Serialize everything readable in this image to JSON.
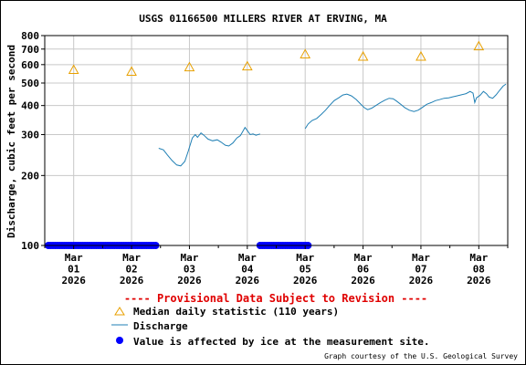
{
  "chart_data": {
    "type": "line",
    "title": "USGS 01166500 MILLERS RIVER AT ERVING, MA",
    "ylabel": "Discharge, cubic feet per second",
    "xlabel": "",
    "y_scale": "log",
    "ylim": [
      100,
      800
    ],
    "y_ticks": [
      {
        "value": 100,
        "label": "100"
      },
      {
        "value": 200,
        "label": "200"
      },
      {
        "value": 300,
        "label": "300"
      },
      {
        "value": 400,
        "label": "400"
      },
      {
        "value": 500,
        "label": "500"
      },
      {
        "value": 600,
        "label": "600"
      },
      {
        "value": 700,
        "label": "700"
      },
      {
        "value": 800,
        "label": "800"
      }
    ],
    "xlim": [
      0.5,
      8.5
    ],
    "x_ticks": [
      {
        "day": 1,
        "line1": "Mar",
        "line2": "01",
        "line3": "2026"
      },
      {
        "day": 2,
        "line1": "Mar",
        "line2": "02",
        "line3": "2026"
      },
      {
        "day": 3,
        "line1": "Mar",
        "line2": "03",
        "line3": "2026"
      },
      {
        "day": 4,
        "line1": "Mar",
        "line2": "04",
        "line3": "2026"
      },
      {
        "day": 5,
        "line1": "Mar",
        "line2": "05",
        "line3": "2026"
      },
      {
        "day": 6,
        "line1": "Mar",
        "line2": "06",
        "line3": "2026"
      },
      {
        "day": 7,
        "line1": "Mar",
        "line2": "07",
        "line3": "2026"
      },
      {
        "day": 8,
        "line1": "Mar",
        "line2": "08",
        "line3": "2026"
      }
    ],
    "grid": true,
    "colors": {
      "discharge": "#1f7fb4",
      "median": "#e8a000",
      "ice": "#0000ff",
      "provisional": "#e00000",
      "grid": "#c8c8c8"
    },
    "median_daily": [
      {
        "day": 1,
        "value": 570
      },
      {
        "day": 2,
        "value": 560
      },
      {
        "day": 3,
        "value": 585
      },
      {
        "day": 4,
        "value": 590
      },
      {
        "day": 5,
        "value": 665
      },
      {
        "day": 6,
        "value": 650
      },
      {
        "day": 7,
        "value": 650
      },
      {
        "day": 8,
        "value": 720
      }
    ],
    "discharge_segments": [
      [
        [
          2.47,
          262
        ],
        [
          2.55,
          258
        ],
        [
          2.62,
          245
        ],
        [
          2.7,
          232
        ],
        [
          2.78,
          222
        ],
        [
          2.85,
          220
        ],
        [
          2.92,
          230
        ],
        [
          2.98,
          255
        ],
        [
          3.05,
          290
        ],
        [
          3.1,
          300
        ],
        [
          3.14,
          292
        ],
        [
          3.2,
          305
        ],
        [
          3.25,
          298
        ],
        [
          3.32,
          287
        ],
        [
          3.4,
          282
        ],
        [
          3.48,
          285
        ],
        [
          3.55,
          278
        ],
        [
          3.62,
          270
        ],
        [
          3.68,
          268
        ],
        [
          3.75,
          276
        ],
        [
          3.82,
          290
        ],
        [
          3.88,
          297
        ],
        [
          3.93,
          312
        ],
        [
          3.96,
          322
        ],
        [
          4.0,
          312
        ],
        [
          4.05,
          300
        ],
        [
          4.1,
          302
        ],
        [
          4.15,
          298
        ],
        [
          4.22,
          302
        ]
      ],
      [
        [
          5.0,
          318
        ],
        [
          5.05,
          333
        ],
        [
          5.12,
          345
        ],
        [
          5.2,
          352
        ],
        [
          5.28,
          367
        ],
        [
          5.35,
          382
        ],
        [
          5.42,
          400
        ],
        [
          5.5,
          420
        ],
        [
          5.58,
          432
        ],
        [
          5.65,
          444
        ],
        [
          5.72,
          448
        ],
        [
          5.8,
          440
        ],
        [
          5.88,
          425
        ],
        [
          5.95,
          408
        ],
        [
          6.02,
          392
        ],
        [
          6.08,
          384
        ],
        [
          6.15,
          390
        ],
        [
          6.22,
          400
        ],
        [
          6.3,
          412
        ],
        [
          6.38,
          422
        ],
        [
          6.45,
          430
        ],
        [
          6.52,
          428
        ],
        [
          6.58,
          418
        ],
        [
          6.65,
          405
        ],
        [
          6.72,
          392
        ],
        [
          6.8,
          382
        ],
        [
          6.88,
          377
        ],
        [
          6.95,
          382
        ],
        [
          7.02,
          392
        ],
        [
          7.1,
          405
        ],
        [
          7.18,
          412
        ],
        [
          7.25,
          420
        ],
        [
          7.32,
          424
        ],
        [
          7.4,
          430
        ],
        [
          7.48,
          432
        ],
        [
          7.55,
          436
        ],
        [
          7.62,
          440
        ],
        [
          7.7,
          445
        ],
        [
          7.78,
          450
        ],
        [
          7.85,
          460
        ],
        [
          7.9,
          452
        ],
        [
          7.93,
          412
        ],
        [
          7.96,
          432
        ],
        [
          8.02,
          442
        ],
        [
          8.08,
          460
        ],
        [
          8.13,
          450
        ],
        [
          8.18,
          435
        ],
        [
          8.24,
          430
        ],
        [
          8.3,
          445
        ],
        [
          8.36,
          465
        ],
        [
          8.42,
          485
        ],
        [
          8.47,
          495
        ]
      ]
    ],
    "ice_ranges": [
      [
        0.5,
        2.45
      ],
      [
        4.22,
        5.05
      ]
    ],
    "ice_value": 100,
    "provisional_notice": "---- Provisional Data Subject to Revision ----",
    "legend": [
      {
        "symbol": "triangle",
        "label": "Median daily statistic (110 years)"
      },
      {
        "symbol": "line",
        "label": "Discharge"
      },
      {
        "symbol": "dot",
        "label": "Value is affected by ice at the measurement site."
      }
    ],
    "credit": "Graph courtesy of the U.S. Geological Survey"
  }
}
